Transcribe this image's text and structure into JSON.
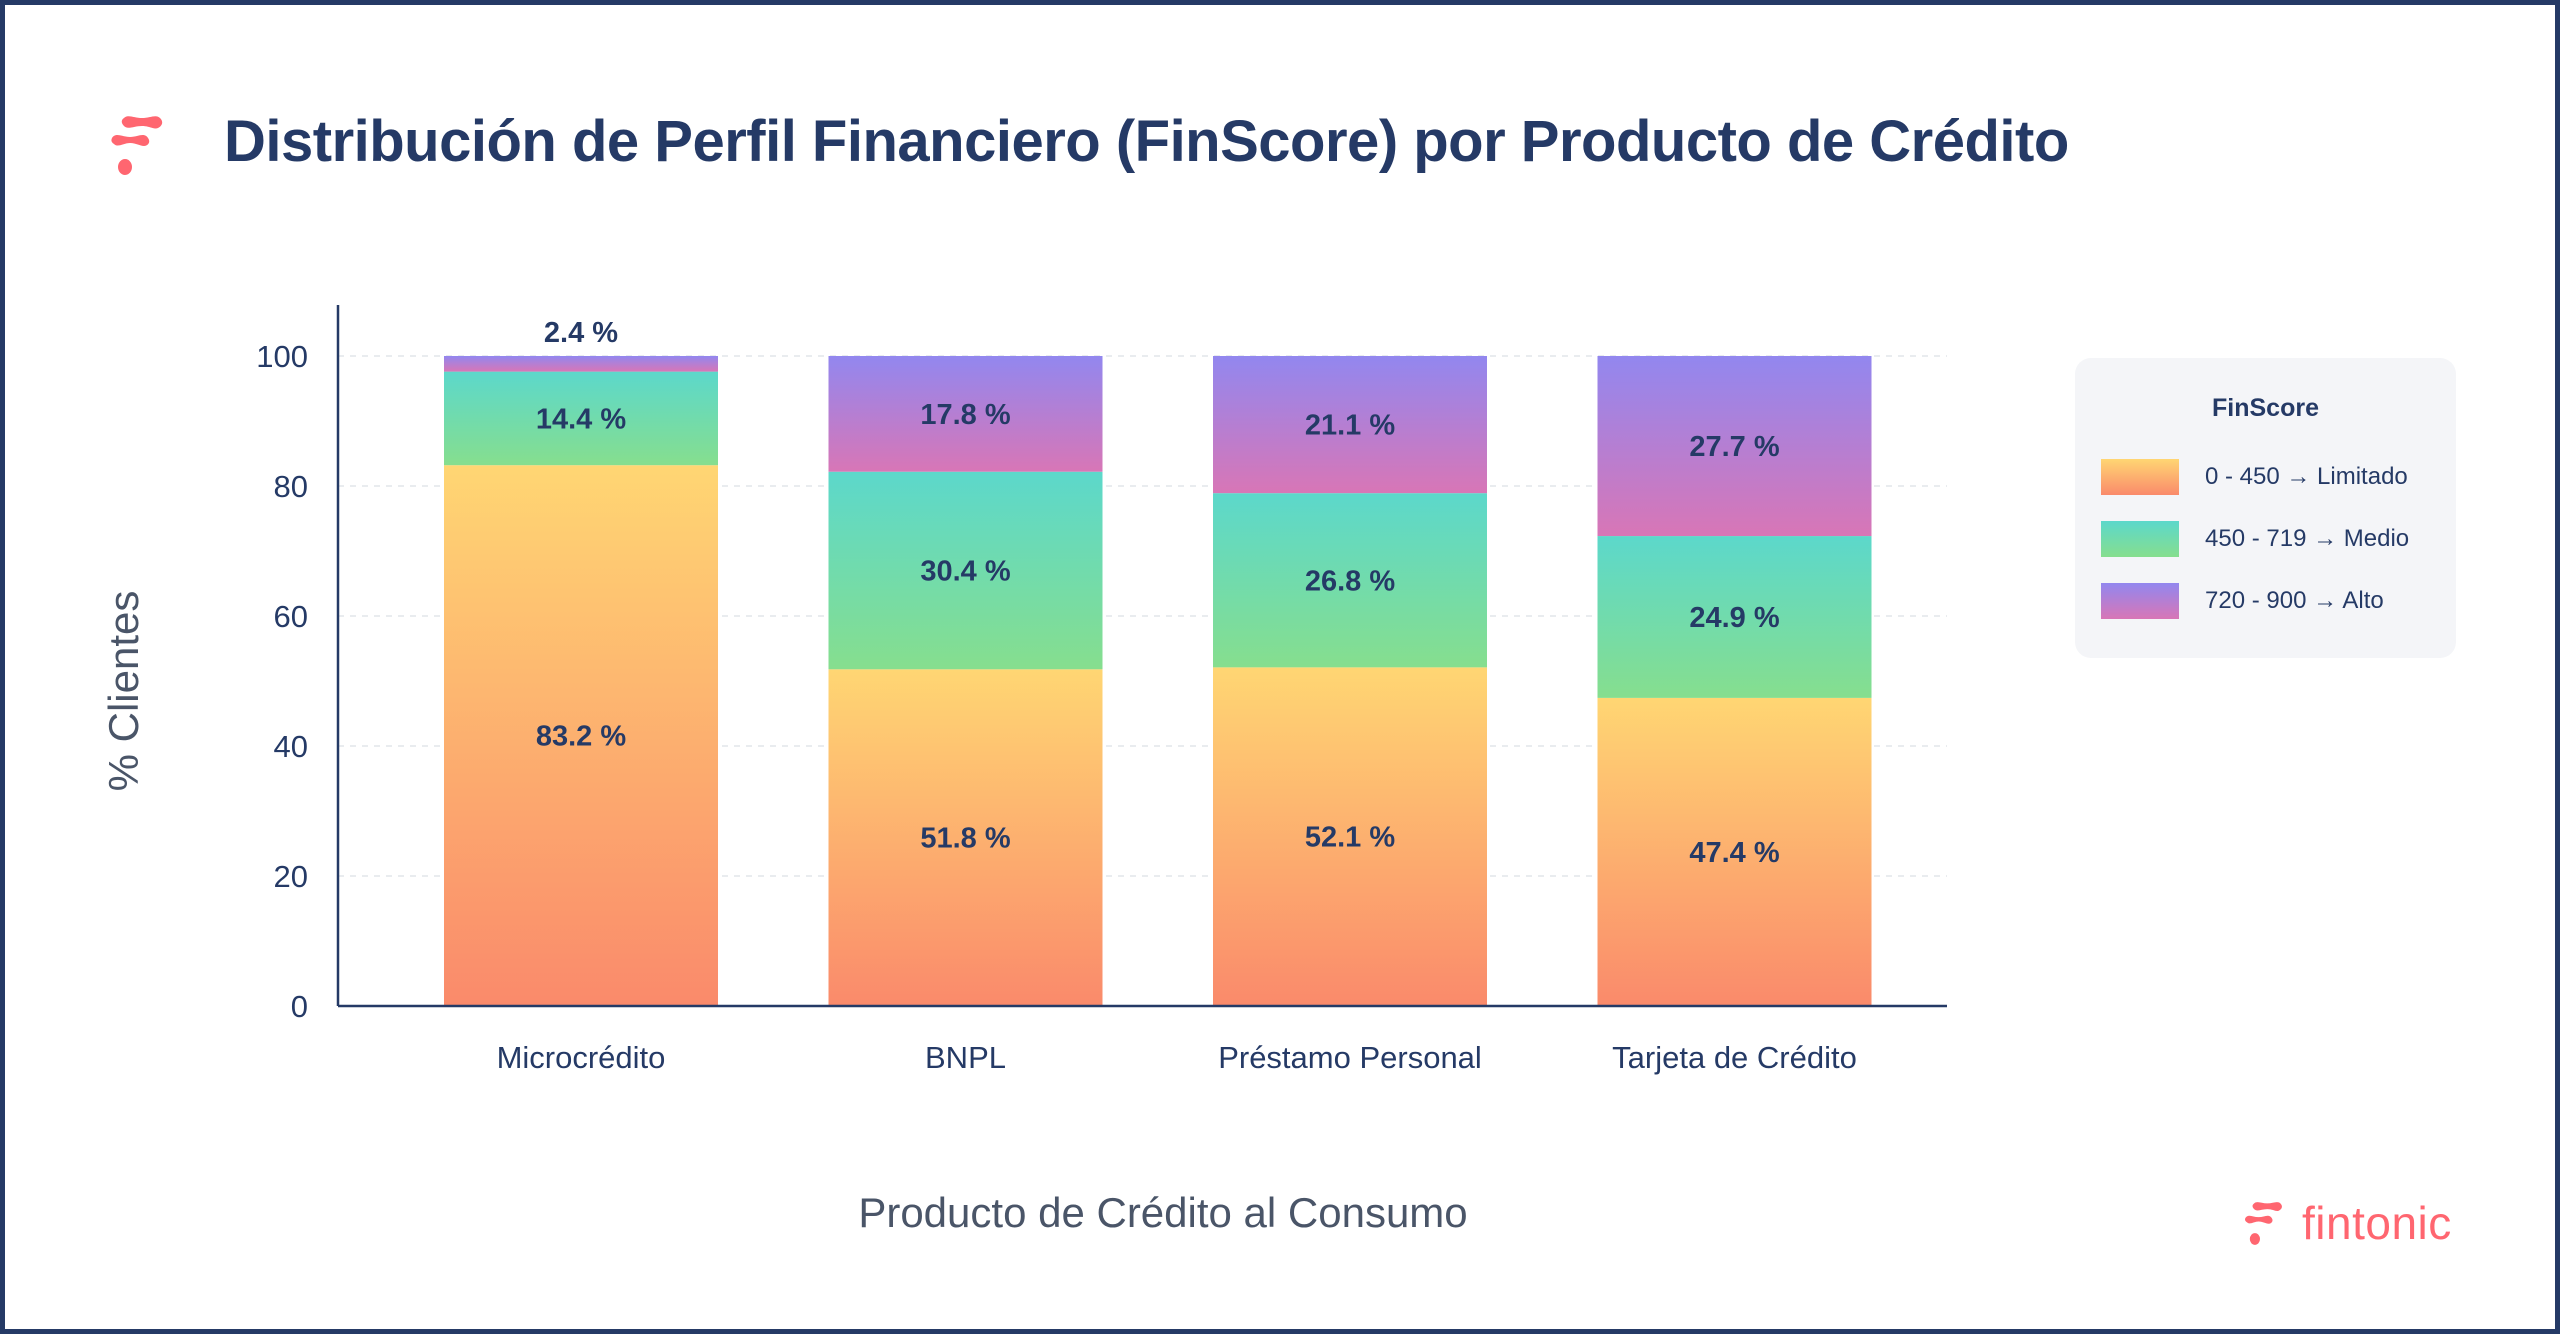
{
  "title": "Distribución de Perfil Financiero (FinScore) por Producto de Crédito",
  "brand": {
    "name": "fintonic",
    "color": "#FF6670"
  },
  "chart_data": {
    "type": "bar",
    "stacked": true,
    "title": "Distribución de Perfil Financiero (FinScore) por Producto de Crédito",
    "xlabel": "Producto de Crédito al Consumo",
    "ylabel": "% Clientes",
    "ylim": [
      0,
      100
    ],
    "yticks": [
      0,
      20,
      40,
      60,
      80,
      100
    ],
    "grid": "horizontal dashed",
    "legend_placement": "right",
    "legend_title": "FinScore",
    "categories": [
      "Microcrédito",
      "BNPL",
      "Préstamo Personal",
      "Tarjeta de Crédito"
    ],
    "series": [
      {
        "name": "0 - 450 → Limitado",
        "values": [
          83.2,
          51.8,
          52.1,
          47.4
        ],
        "colors": [
          "#FFD673",
          "#FA8A6B"
        ]
      },
      {
        "name": "450 - 719 → Medio",
        "values": [
          14.4,
          30.4,
          26.8,
          24.9
        ],
        "colors": [
          "#5CD8CB",
          "#86DE8E"
        ]
      },
      {
        "name": "720 - 900 → Alto",
        "values": [
          2.4,
          17.8,
          21.1,
          27.7
        ],
        "colors": [
          "#9287EF",
          "#D876B6"
        ]
      }
    ],
    "label_suffix": " %"
  }
}
